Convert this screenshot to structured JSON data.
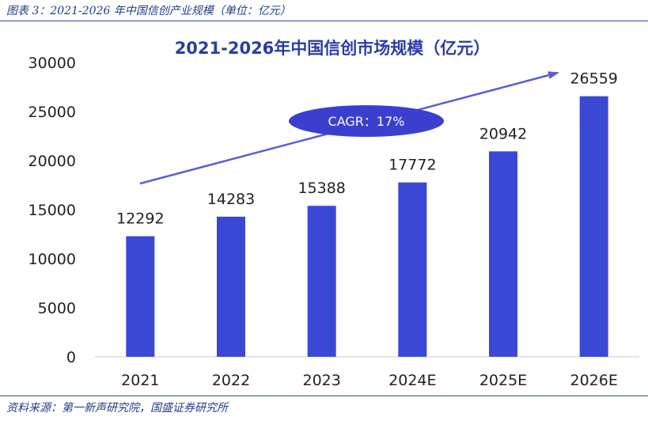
{
  "figure": {
    "caption": "图表 3：2021-2026 年中国信创产业规模（单位：亿元）",
    "source": "资料来源：第一新声研究院，国盛证券研究所"
  },
  "colors": {
    "bar": "#3b48d6",
    "accent": "#1f3c88",
    "arrow": "#5a5fd0",
    "bubble": "#3b3fd0"
  },
  "chart_data": {
    "type": "bar",
    "title": "2021-2026年中国信创市场规模（亿元）",
    "categories": [
      "2021",
      "2022",
      "2023",
      "2024E",
      "2025E",
      "2026E"
    ],
    "values": [
      12292,
      14283,
      15388,
      17772,
      20942,
      26559
    ],
    "data_labels": [
      "12292",
      "14283",
      "15388",
      "17772",
      "20942",
      "26559"
    ],
    "ylim": [
      0,
      30000
    ],
    "yticks": [
      0,
      5000,
      10000,
      15000,
      20000,
      25000,
      30000
    ],
    "ytick_labels": [
      "0",
      "5000",
      "10000",
      "15000",
      "20000",
      "25000",
      "30000"
    ],
    "grid": false,
    "legend": "none",
    "annotation": "CAGR：17%"
  }
}
